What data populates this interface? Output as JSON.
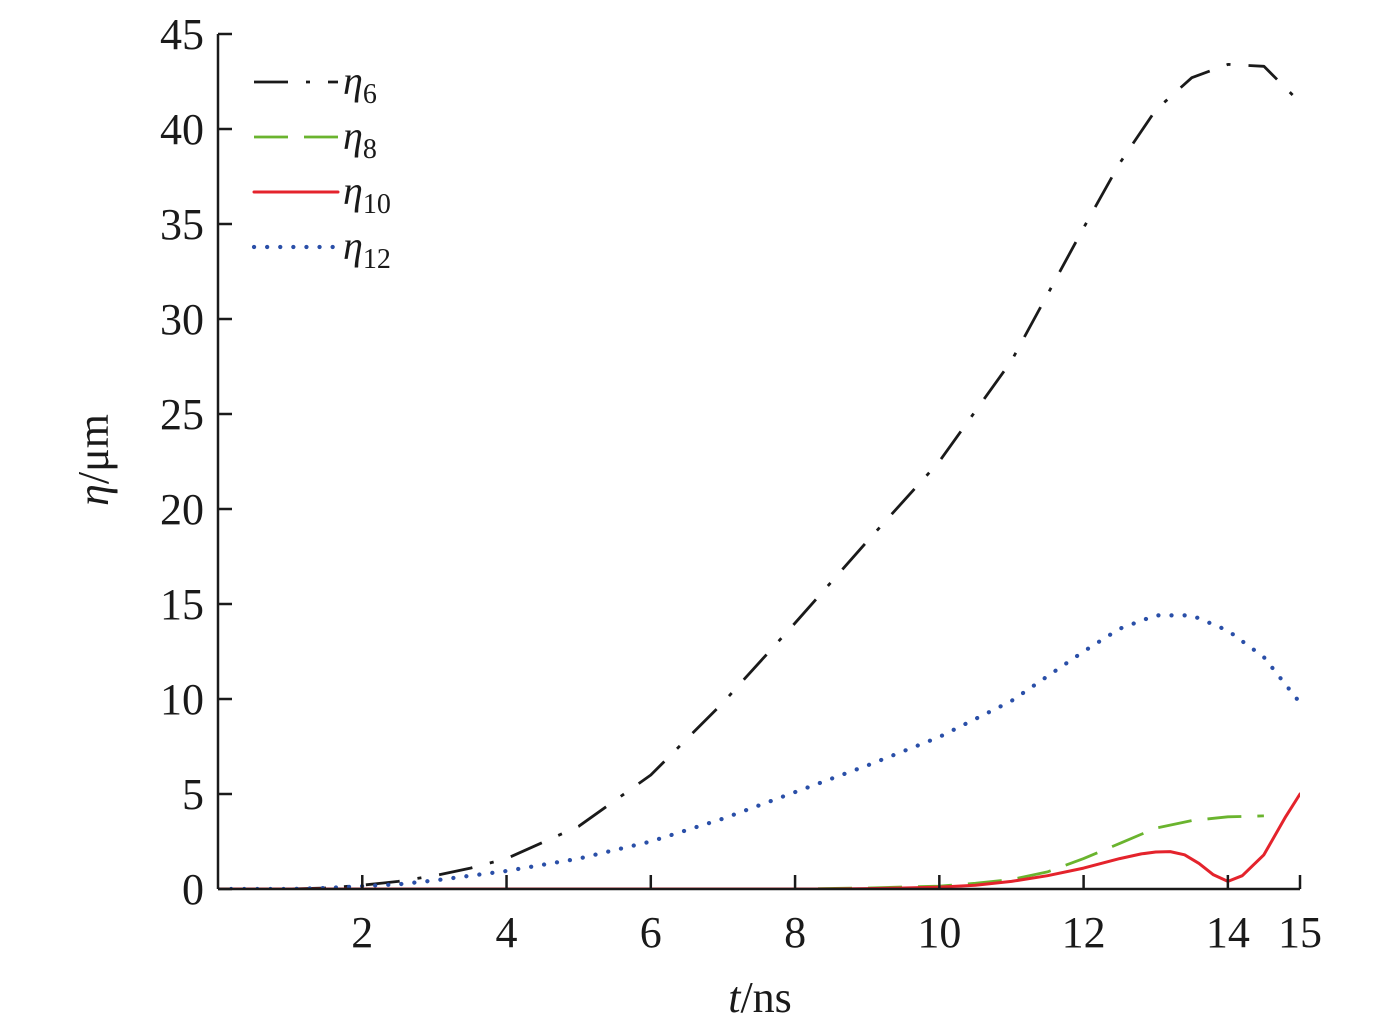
{
  "chart_data": {
    "type": "line",
    "title": "",
    "xlabel": {
      "var": "t",
      "unit": "/ns"
    },
    "ylabel": {
      "var": "η",
      "unit": "/μm"
    },
    "xlim": [
      0,
      15
    ],
    "ylim": [
      0,
      45
    ],
    "xticks": [
      2,
      4,
      6,
      8,
      10,
      12,
      14,
      15
    ],
    "yticks": [
      0,
      5,
      10,
      15,
      20,
      25,
      30,
      35,
      40,
      45
    ],
    "grid": false,
    "legend_position": "top-left",
    "series": [
      {
        "name": "η6",
        "name_base": "η",
        "name_sub": "6",
        "color": "#1a1a1a",
        "style": "dash-dot",
        "x": [
          0,
          1,
          1.5,
          2,
          2.5,
          3,
          3.5,
          4,
          5,
          6,
          7,
          8,
          9,
          10,
          11,
          12,
          12.5,
          13,
          13.5,
          14,
          14.5,
          15
        ],
        "y": [
          0,
          0,
          0.05,
          0.2,
          0.4,
          0.7,
          1.1,
          1.6,
          3.3,
          6.0,
          9.8,
          14.0,
          18.3,
          22.5,
          27.8,
          34.8,
          38.2,
          41.0,
          42.7,
          43.4,
          43.3,
          41.4
        ]
      },
      {
        "name": "η8",
        "name_base": "η",
        "name_sub": "8",
        "color": "#6ab42e",
        "style": "dashed",
        "x": [
          0,
          8,
          9,
          10,
          10.5,
          11,
          11.5,
          12,
          12.5,
          13,
          13.5,
          14,
          14.5
        ],
        "y": [
          0,
          0,
          0.05,
          0.15,
          0.3,
          0.5,
          0.9,
          1.6,
          2.4,
          3.2,
          3.6,
          3.8,
          3.85
        ]
      },
      {
        "name": "η10",
        "name_base": "η",
        "name_sub": "10",
        "color": "#e4232c",
        "style": "solid",
        "x": [
          0,
          8.5,
          9,
          9.5,
          10,
          10.5,
          11,
          11.5,
          12,
          12.5,
          12.8,
          13,
          13.2,
          13.4,
          13.6,
          13.8,
          14,
          14.2,
          14.5,
          14.8,
          15
        ],
        "y": [
          0,
          0,
          0.02,
          0.05,
          0.1,
          0.2,
          0.4,
          0.7,
          1.1,
          1.6,
          1.85,
          1.95,
          1.97,
          1.8,
          1.35,
          0.75,
          0.4,
          0.7,
          1.8,
          3.8,
          5.0
        ]
      },
      {
        "name": "η12",
        "name_base": "η",
        "name_sub": "12",
        "color": "#2a4fa8",
        "style": "dotted",
        "x": [
          0,
          1,
          1.5,
          2,
          2.5,
          3,
          3.5,
          4,
          5,
          6,
          7,
          8,
          9,
          10,
          11,
          12,
          12.5,
          13,
          13.5,
          14,
          14.5,
          15
        ],
        "y": [
          0,
          0,
          0.05,
          0.15,
          0.25,
          0.45,
          0.7,
          0.95,
          1.6,
          2.5,
          3.7,
          5.1,
          6.5,
          8.0,
          9.9,
          12.5,
          13.7,
          14.4,
          14.4,
          13.6,
          12.2,
          9.8
        ]
      }
    ]
  }
}
